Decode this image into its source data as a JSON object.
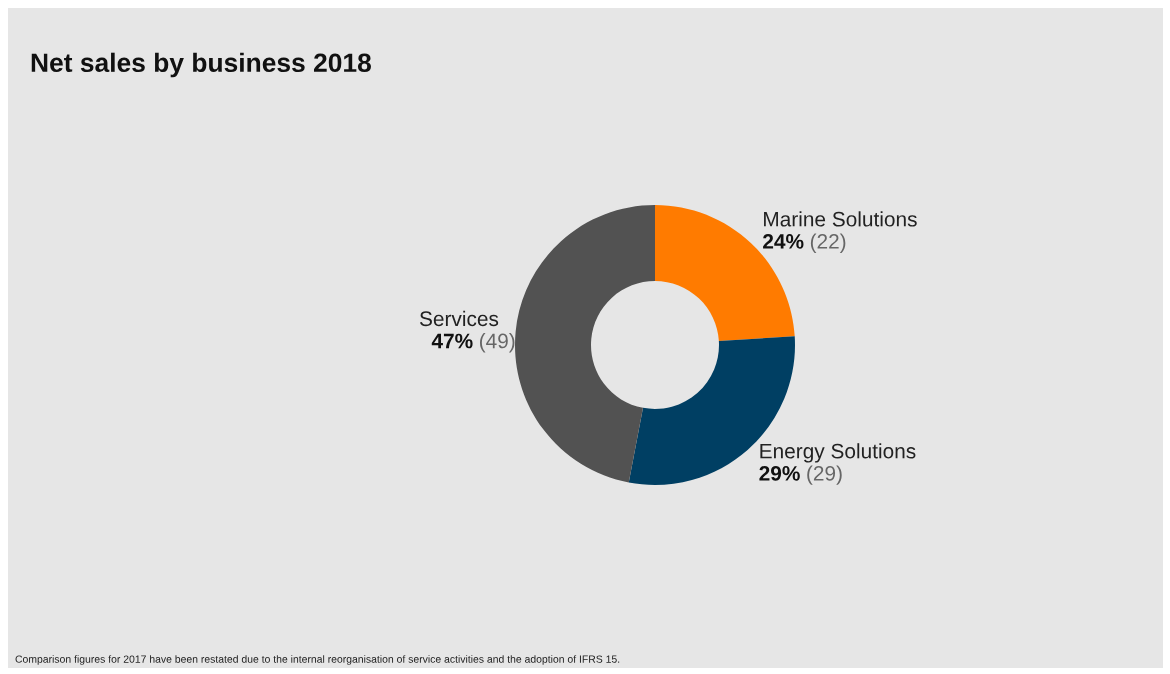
{
  "chart_data": {
    "type": "donut",
    "title": "Net sales by business 2018",
    "categories": [
      "Marine Solutions",
      "Energy Solutions",
      "Services"
    ],
    "values": [
      24,
      29,
      47
    ],
    "colors": [
      "#ff7b00",
      "#003f63",
      "#525252"
    ],
    "value_labels": [
      "24% (22)",
      "29% (29)",
      "47% (49)"
    ],
    "legend": false,
    "annotations": [
      "Comparison figures for 2017 have been restated due to the internal reorganisation of service activities and the adoption of IFRS 15."
    ]
  }
}
